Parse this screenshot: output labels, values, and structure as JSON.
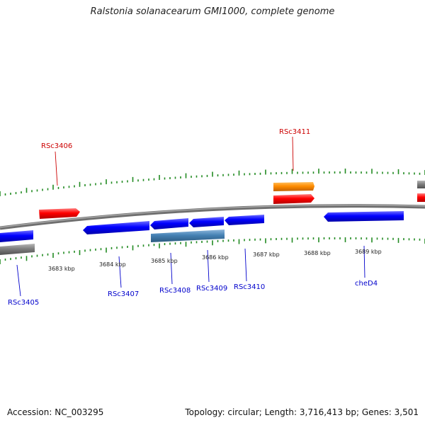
{
  "title": "Ralstonia solanacearum GMI1000, complete genome",
  "footer": {
    "accession": "Accession: NC_003295",
    "summary": "Topology: circular; Length: 3,716,413 bp; Genes: 3,501"
  },
  "colors": {
    "forward_gene": "#ff0000",
    "reverse_gene": "#0000ff",
    "rna_gene": "#ff8c00",
    "other_feature": "#4682b4",
    "pseudo_feature": "#808080",
    "backbone": "#7f7f7f",
    "gc_ticks": "#228b22",
    "forward_label": "#cc0000",
    "reverse_label": "#0000cc"
  },
  "scale_ticks": [
    {
      "label": "3683 kbp",
      "kbp": 3683
    },
    {
      "label": "3684 kbp",
      "kbp": 3684
    },
    {
      "label": "3685 kbp",
      "kbp": 3685
    },
    {
      "label": "3686 kbp",
      "kbp": 3686
    },
    {
      "label": "3687 kbp",
      "kbp": 3687
    },
    {
      "label": "3688 kbp",
      "kbp": 3688
    },
    {
      "label": "3689 kbp",
      "kbp": 3689
    }
  ],
  "gene_labels": [
    {
      "name": "RSc3406",
      "strand": "forward"
    },
    {
      "name": "RSc3411",
      "strand": "forward"
    },
    {
      "name": "RSc3405",
      "strand": "reverse"
    },
    {
      "name": "RSc3407",
      "strand": "reverse"
    },
    {
      "name": "RSc3408",
      "strand": "reverse"
    },
    {
      "name": "RSc3409",
      "strand": "reverse"
    },
    {
      "name": "RSc3410",
      "strand": "reverse"
    },
    {
      "name": "cheD4",
      "strand": "reverse"
    }
  ]
}
